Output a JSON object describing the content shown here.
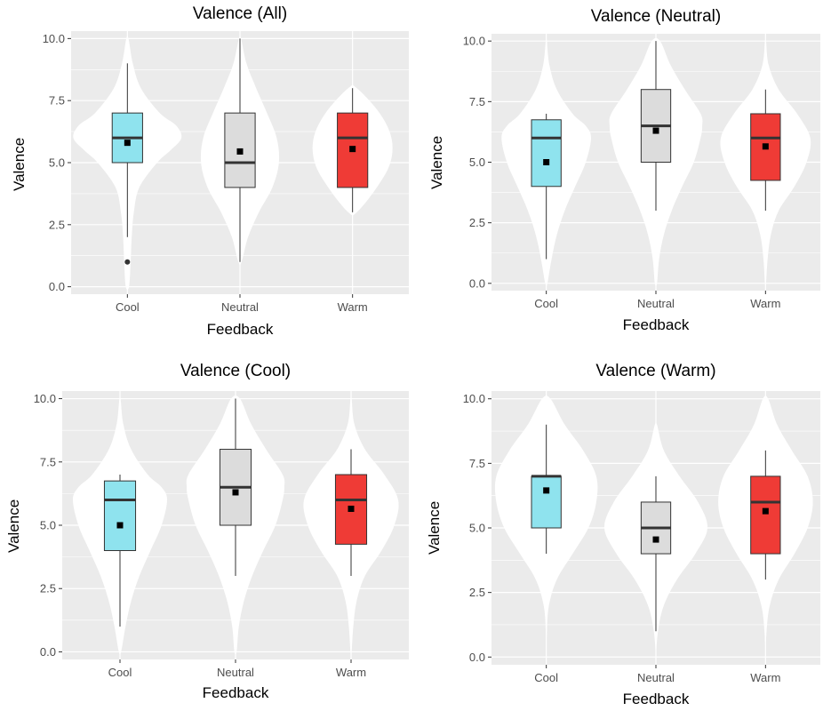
{
  "palette": {
    "Cool": "#8fe3ee",
    "Neutral": "#dcdcdc",
    "Warm": "#ef3b36",
    "panel_bg": "#ebebeb",
    "grid": "#ffffff",
    "violin": "#ffffff",
    "tick_text": "#4d4d4d"
  },
  "chart_data": [
    {
      "type": "violin+box",
      "title": "Valence (All)",
      "xlabel": "Feedback",
      "ylabel": "Valence",
      "ylim": [
        -0.3,
        10.3
      ],
      "yticks": [
        "0.0",
        "2.5",
        "5.0",
        "7.5",
        "10.0"
      ],
      "categories": [
        "Cool",
        "Neutral",
        "Warm"
      ],
      "boxes": [
        {
          "category": "Cool",
          "whisker_low": 2,
          "q1": 5,
          "median": 6,
          "q3": 7,
          "whisker_high": 9,
          "mean": 5.8,
          "outliers": [
            1
          ]
        },
        {
          "category": "Neutral",
          "whisker_low": 1,
          "q1": 4,
          "median": 5,
          "q3": 7,
          "whisker_high": 10,
          "mean": 5.45,
          "outliers": []
        },
        {
          "category": "Warm",
          "whisker_low": 3,
          "q1": 4,
          "median": 6,
          "q3": 7,
          "whisker_high": 8,
          "mean": 5.55,
          "outliers": []
        }
      ],
      "violins": [
        {
          "category": "Cool",
          "y": [
            0.0,
            1.0,
            2.0,
            3.0,
            4.0,
            5.0,
            5.5,
            6.0,
            6.5,
            7.0,
            8.0,
            9.0,
            10.0
          ],
          "density": [
            0.03,
            0.06,
            0.08,
            0.12,
            0.22,
            0.55,
            0.8,
            1.0,
            0.9,
            0.6,
            0.25,
            0.1,
            0.02
          ]
        },
        {
          "category": "Neutral",
          "y": [
            1.0,
            2.0,
            3.0,
            4.0,
            5.0,
            6.0,
            7.0,
            8.0,
            9.0,
            10.0
          ],
          "density": [
            0.03,
            0.15,
            0.35,
            0.6,
            0.72,
            0.68,
            0.5,
            0.3,
            0.12,
            0.02
          ]
        },
        {
          "category": "Warm",
          "y": [
            3.0,
            4.0,
            5.0,
            6.0,
            7.0,
            8.0
          ],
          "density": [
            0.08,
            0.45,
            0.7,
            0.72,
            0.5,
            0.08
          ]
        }
      ]
    },
    {
      "type": "violin+box",
      "title": "Valence (Neutral)",
      "xlabel": "Feedback",
      "ylabel": "Valence",
      "ylim": [
        -0.3,
        10.3
      ],
      "yticks": [
        "0.0",
        "2.5",
        "5.0",
        "7.5",
        "10.0"
      ],
      "categories": [
        "Cool",
        "Neutral",
        "Warm"
      ],
      "boxes": [
        {
          "category": "Cool",
          "whisker_low": 1,
          "q1": 4,
          "median": 6,
          "q3": 6.75,
          "whisker_high": 7,
          "mean": 5.0,
          "outliers": []
        },
        {
          "category": "Neutral",
          "whisker_low": 3,
          "q1": 5,
          "median": 6.5,
          "q3": 8,
          "whisker_high": 10,
          "mean": 6.3,
          "outliers": []
        },
        {
          "category": "Warm",
          "whisker_low": 3,
          "q1": 4.25,
          "median": 6,
          "q3": 7,
          "whisker_high": 8,
          "mean": 5.65,
          "outliers": []
        }
      ],
      "violins": [
        {
          "category": "Cool",
          "y": [
            0.0,
            1.0,
            2.0,
            3.0,
            4.0,
            5.0,
            6.0,
            6.5,
            7.0,
            8.0,
            9.0,
            10.0
          ],
          "density": [
            0.02,
            0.1,
            0.2,
            0.35,
            0.55,
            0.75,
            0.85,
            0.75,
            0.5,
            0.2,
            0.06,
            0.01
          ]
        },
        {
          "category": "Neutral",
          "y": [
            0.0,
            1.0,
            2.0,
            3.0,
            4.0,
            5.0,
            6.0,
            6.5,
            7.0,
            8.0,
            9.0,
            10.0
          ],
          "density": [
            0.02,
            0.06,
            0.15,
            0.3,
            0.5,
            0.72,
            0.85,
            0.88,
            0.85,
            0.55,
            0.28,
            0.08
          ]
        },
        {
          "category": "Warm",
          "y": [
            0.0,
            1.0,
            2.0,
            3.0,
            4.0,
            5.0,
            6.0,
            7.0,
            8.0,
            9.0,
            10.0
          ],
          "density": [
            0.01,
            0.04,
            0.1,
            0.25,
            0.55,
            0.78,
            0.85,
            0.6,
            0.25,
            0.06,
            0.01
          ]
        }
      ]
    },
    {
      "type": "violin+box",
      "title": "Valence (Cool)",
      "xlabel": "Feedback",
      "ylabel": "Valence",
      "ylim": [
        -0.3,
        10.3
      ],
      "yticks": [
        "0.0",
        "2.5",
        "5.0",
        "7.5",
        "10.0"
      ],
      "categories": [
        "Cool",
        "Neutral",
        "Warm"
      ],
      "boxes": [
        {
          "category": "Cool",
          "whisker_low": 1,
          "q1": 4,
          "median": 6,
          "q3": 6.75,
          "whisker_high": 7,
          "mean": 5.0,
          "outliers": []
        },
        {
          "category": "Neutral",
          "whisker_low": 3,
          "q1": 5,
          "median": 6.5,
          "q3": 8,
          "whisker_high": 10,
          "mean": 6.3,
          "outliers": []
        },
        {
          "category": "Warm",
          "whisker_low": 3,
          "q1": 4.25,
          "median": 6,
          "q3": 7,
          "whisker_high": 8,
          "mean": 5.65,
          "outliers": []
        }
      ],
      "violins": [
        {
          "category": "Cool",
          "y": [
            0.0,
            1.0,
            2.0,
            3.0,
            4.0,
            5.0,
            6.0,
            6.5,
            7.0,
            8.0,
            9.0,
            10.0
          ],
          "density": [
            0.02,
            0.1,
            0.2,
            0.35,
            0.55,
            0.75,
            0.85,
            0.75,
            0.5,
            0.2,
            0.06,
            0.01
          ]
        },
        {
          "category": "Neutral",
          "y": [
            0.0,
            1.0,
            2.0,
            3.0,
            4.0,
            5.0,
            6.0,
            6.5,
            7.0,
            8.0,
            9.0,
            10.0
          ],
          "density": [
            0.02,
            0.06,
            0.15,
            0.3,
            0.5,
            0.72,
            0.85,
            0.88,
            0.85,
            0.55,
            0.28,
            0.08
          ]
        },
        {
          "category": "Warm",
          "y": [
            0.0,
            1.0,
            2.0,
            3.0,
            4.0,
            5.0,
            6.0,
            7.0,
            8.0,
            9.0,
            10.0
          ],
          "density": [
            0.01,
            0.04,
            0.1,
            0.25,
            0.55,
            0.78,
            0.85,
            0.6,
            0.25,
            0.06,
            0.01
          ]
        }
      ]
    },
    {
      "type": "violin+box",
      "title": "Valence (Warm)",
      "xlabel": "Feedback",
      "ylabel": "Valence",
      "ylim": [
        -0.3,
        10.3
      ],
      "yticks": [
        "0.0",
        "2.5",
        "5.0",
        "7.5",
        "10.0"
      ],
      "categories": [
        "Cool",
        "Neutral",
        "Warm"
      ],
      "boxes": [
        {
          "category": "Cool",
          "whisker_low": 4,
          "q1": 5,
          "median": 7,
          "q3": 7,
          "whisker_high": 9,
          "mean": 6.45,
          "outliers": []
        },
        {
          "category": "Neutral",
          "whisker_low": 1,
          "q1": 4,
          "median": 5,
          "q3": 6,
          "whisker_high": 7,
          "mean": 4.55,
          "outliers": []
        },
        {
          "category": "Warm",
          "whisker_low": 3,
          "q1": 4,
          "median": 6,
          "q3": 7,
          "whisker_high": 8,
          "mean": 5.65,
          "outliers": []
        }
      ],
      "violins": [
        {
          "category": "Cool",
          "y": [
            0.0,
            1.0,
            2.0,
            3.0,
            4.0,
            5.0,
            6.0,
            7.0,
            8.0,
            9.0,
            10.0
          ],
          "density": [
            0.0,
            0.01,
            0.05,
            0.2,
            0.5,
            0.8,
            0.95,
            0.95,
            0.7,
            0.35,
            0.08
          ]
        },
        {
          "category": "Neutral",
          "y": [
            0.0,
            1.0,
            2.0,
            3.0,
            4.0,
            5.0,
            6.0,
            7.0,
            8.0,
            9.0
          ],
          "density": [
            0.0,
            0.04,
            0.15,
            0.4,
            0.75,
            0.98,
            0.8,
            0.45,
            0.15,
            0.02
          ]
        },
        {
          "category": "Warm",
          "y": [
            0.0,
            1.0,
            2.0,
            3.0,
            4.0,
            5.0,
            6.0,
            7.0,
            8.0,
            9.0,
            10.0
          ],
          "density": [
            0.0,
            0.02,
            0.08,
            0.25,
            0.55,
            0.8,
            0.9,
            0.8,
            0.5,
            0.22,
            0.05
          ]
        }
      ]
    }
  ]
}
